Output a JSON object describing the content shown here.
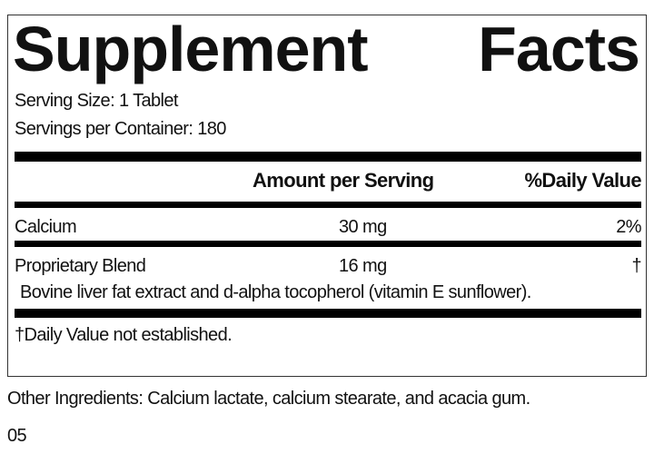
{
  "title": {
    "word1": "Supplement",
    "word2": "Facts"
  },
  "serving_size": "Serving Size: 1 Tablet",
  "servings_per_container": "Servings per Container: 180",
  "header": {
    "amount": "Amount per Serving",
    "daily_value": "%Daily Value"
  },
  "rows": [
    {
      "name": "Calcium",
      "amount": "30 mg",
      "dv": "2%"
    },
    {
      "name": "Proprietary Blend",
      "amount": "16 mg",
      "dv": "†",
      "description": "Bovine liver fat extract and d-alpha tocopherol (vitamin E sunflower)."
    }
  ],
  "footnote": "†Daily Value not established.",
  "other_ingredients": "Other Ingredients: Calcium lactate, calcium stearate, and acacia gum.",
  "code": "05"
}
